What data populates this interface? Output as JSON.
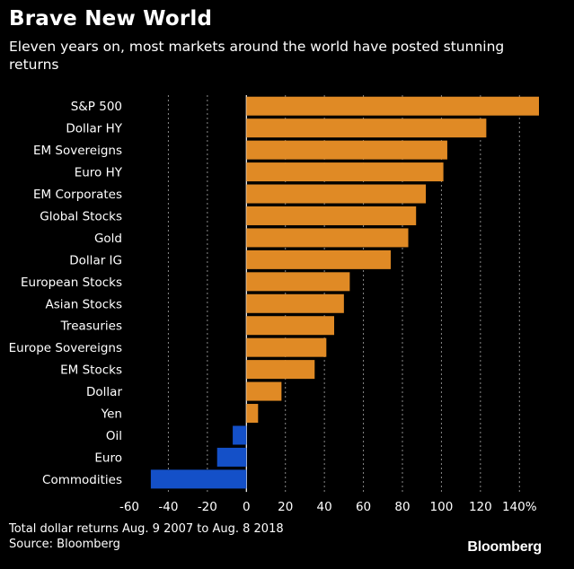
{
  "title": "Brave New World",
  "subtitle": "Eleven years on, most markets around the world have posted stunning returns",
  "footnote": "Total dollar returns Aug. 9 2007 to Aug. 8 2018",
  "source": "Source: Bloomberg",
  "brand": "Bloomberg",
  "colors": {
    "background": "#000000",
    "positive": "#e08a25",
    "negative": "#1450c8",
    "text": "#ffffff",
    "grid": "#8a8a8a"
  },
  "chart_data": {
    "type": "bar",
    "orientation": "horizontal",
    "title": "Brave New World",
    "subtitle": "Eleven years on, most markets around the world have posted stunning returns",
    "xlabel": "",
    "ylabel": "",
    "xlim": [
      -60,
      150
    ],
    "x_ticks": [
      -60,
      -40,
      -20,
      0,
      20,
      40,
      60,
      80,
      100,
      120,
      140
    ],
    "x_tick_labels": [
      "-60",
      "-40",
      "-20",
      "0",
      "20",
      "40",
      "60",
      "80",
      "100",
      "120",
      "140%"
    ],
    "grid": "vertical dotted",
    "categories": [
      "S&P 500",
      "Dollar HY",
      "EM Sovereigns",
      "Euro HY",
      "EM Corporates",
      "Global Stocks",
      "Gold",
      "Dollar IG",
      "European Stocks",
      "Asian Stocks",
      "Treasuries",
      "Europe Sovereigns",
      "EM Stocks",
      "Dollar",
      "Yen",
      "Oil",
      "Euro",
      "Commodities"
    ],
    "values": [
      150,
      123,
      103,
      101,
      92,
      87,
      83,
      74,
      53,
      50,
      45,
      41,
      35,
      18,
      6,
      -7,
      -15,
      -49
    ]
  }
}
